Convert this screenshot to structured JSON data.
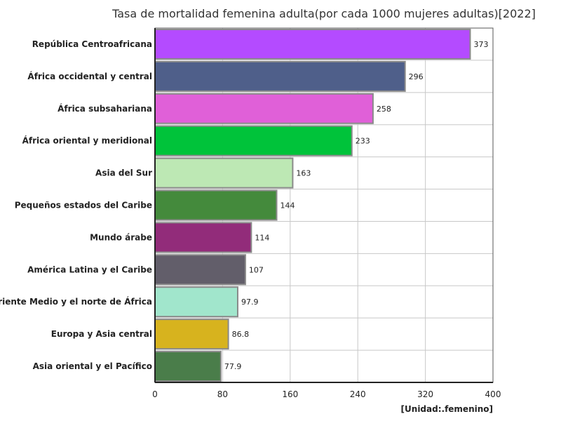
{
  "chart_data": {
    "type": "bar",
    "orientation": "horizontal",
    "title": "Tasa de mortalidad femenina adulta(por cada 1000 mujeres adultas)[2022]",
    "unit_label": "[Unidad:.femenino]",
    "categories": [
      "República Centroafricana",
      "África occidental y central",
      "África subsahariana",
      "África oriental y meridional",
      "Asia del Sur",
      "Pequeños estados del Caribe",
      "Mundo árabe",
      "América Latina y el Caribe",
      "Oriente Medio y el norte de África",
      "Europa y Asia central",
      "Asia oriental y el Pacífico"
    ],
    "values": [
      373,
      296,
      258,
      233,
      163,
      144,
      114,
      107,
      97.9,
      86.8,
      77.9
    ],
    "value_labels": [
      "373",
      "296",
      "258",
      "233",
      "163",
      "144",
      "114",
      "107",
      "97.9",
      "86.8",
      "77.9"
    ],
    "colors": [
      "#b44bff",
      "#4f5f8a",
      "#e060d8",
      "#00c33a",
      "#bde8b4",
      "#448a3c",
      "#922c7a",
      "#625e6a",
      "#a1e6cc",
      "#d7b31e",
      "#4a7d4a"
    ],
    "xlim": [
      0,
      400
    ],
    "xticks": [
      0,
      80,
      160,
      240,
      320,
      400
    ],
    "xtick_labels": [
      "0",
      "80",
      "160",
      "240",
      "320",
      "400"
    ],
    "grid": true,
    "xlabel": "",
    "ylabel": ""
  }
}
